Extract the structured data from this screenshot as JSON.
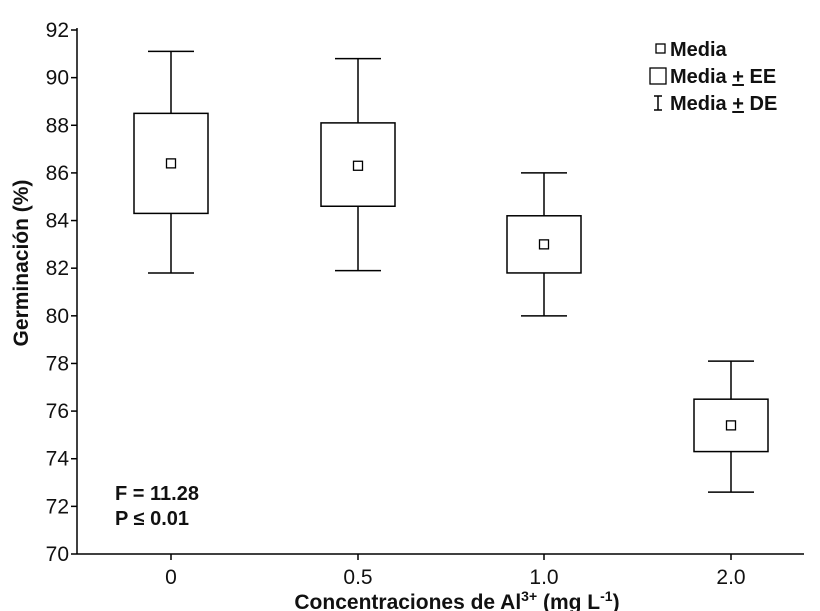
{
  "chart_data": {
    "type": "box",
    "xlabel": "Concentraciones de Al",
    "xlabel_sup": "3+",
    "xlabel_unit_pre": " (mg L",
    "xlabel_unit_sup": "-1",
    "xlabel_unit_post": ")",
    "ylabel": "Germinación (%)",
    "ylim": [
      70,
      92
    ],
    "yticks": [
      70,
      72,
      74,
      76,
      78,
      80,
      82,
      84,
      86,
      88,
      90,
      92
    ],
    "categories": [
      "0",
      "0.5",
      "1.0",
      "2.0"
    ],
    "mean": [
      86.4,
      86.3,
      83.0,
      75.4
    ],
    "ee_low": [
      84.3,
      84.6,
      81.8,
      74.3
    ],
    "ee_high": [
      88.5,
      88.1,
      84.2,
      76.5
    ],
    "de_low": [
      81.8,
      81.9,
      80.0,
      72.6
    ],
    "de_high": [
      91.1,
      90.8,
      86.0,
      78.1
    ],
    "legend": {
      "mean_label": "Media",
      "ee_label_pre": "Media ",
      "ee_label_pm": "+",
      "ee_label_post": " EE",
      "de_label_pre": "Media ",
      "de_label_pm": "+",
      "de_label_post": " DE",
      "position": "top-right"
    },
    "stats": {
      "f_line": "F = 11.28",
      "p_line": "P ≤ 0.01"
    }
  }
}
